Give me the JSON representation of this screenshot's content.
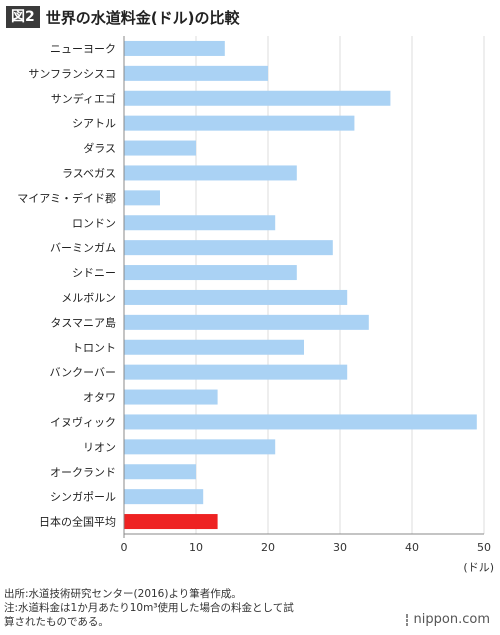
{
  "figure": {
    "badge": "図2",
    "title": "世界の水道料金(ドル)の比較"
  },
  "chart_data": {
    "type": "bar",
    "orientation": "horizontal",
    "categories": [
      "ニューヨーク",
      "サンフランシスコ",
      "サンディエゴ",
      "シアトル",
      "ダラス",
      "ラスベガス",
      "マイアミ・デイド郡",
      "ロンドン",
      "バーミンガム",
      "シドニー",
      "メルボルン",
      "タスマニア島",
      "トロント",
      "バンクーバー",
      "オタワ",
      "イヌヴィック",
      "リオン",
      "オークランド",
      "シンガポール",
      "日本の全国平均"
    ],
    "values": [
      14,
      20,
      37,
      32,
      10,
      24,
      5,
      21,
      29,
      24,
      31,
      34,
      25,
      31,
      13,
      49,
      21,
      10,
      11,
      13
    ],
    "highlight_index": 19,
    "colors": {
      "bar": "#aad2f4",
      "highlight": "#ee2222",
      "grid": "#dddddd",
      "axis": "#888888"
    },
    "xlim": [
      0,
      50
    ],
    "xticks": [
      0,
      10,
      20,
      30,
      40,
      50
    ],
    "xlabel": "(ドル)",
    "grid": true
  },
  "footer": {
    "source": "出所:水道技術研究センター(2016)より筆者作成。",
    "note_line1": "注:水道料金は1か月あたり10m³使用した場合の料金として試",
    "note_line2": "算されたものである。"
  },
  "logo": {
    "text": "nippon.com",
    "icon": "nippon-logo-icon"
  }
}
